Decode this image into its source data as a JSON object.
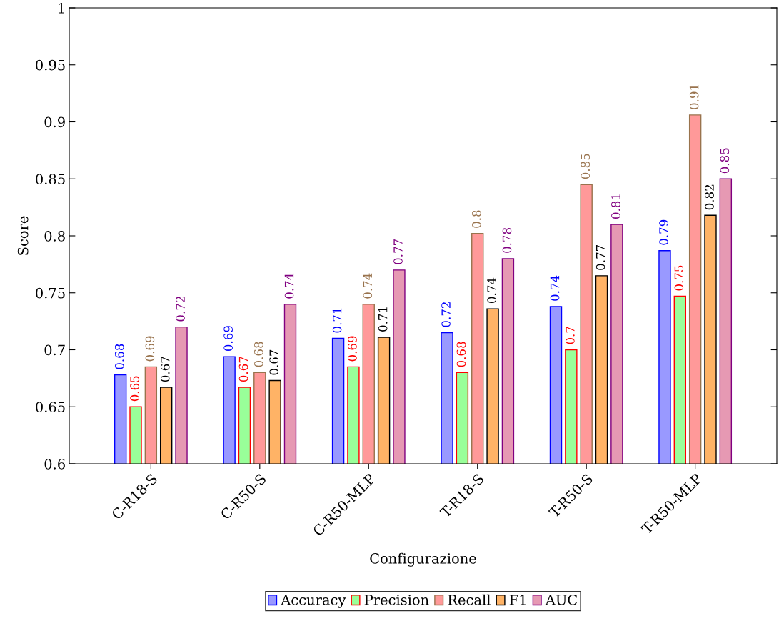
{
  "chart_data": {
    "type": "bar",
    "xlabel": "Configurazione",
    "ylabel": "Score",
    "categories": [
      "C-R18-S",
      "C-R50-S",
      "C-R50-MLP",
      "T-R18-S",
      "T-R50-S",
      "T-R50-MLP"
    ],
    "series": [
      {
        "name": "Accuracy",
        "color": "#9999ff",
        "values": [
          0.678,
          0.694,
          0.71,
          0.715,
          0.738,
          0.787
        ],
        "value_labels": [
          "0.68",
          "0.69",
          "0.71",
          "0.72",
          "0.74",
          "0.79"
        ]
      },
      {
        "name": "Precision",
        "color": "#99ff99",
        "values": [
          0.65,
          0.667,
          0.685,
          0.68,
          0.7,
          0.747
        ],
        "value_labels": [
          "0.65",
          "0.67",
          "0.69",
          "0.68",
          "0.7",
          "0.75"
        ]
      },
      {
        "name": "Recall",
        "color": "#ff9999",
        "values": [
          0.685,
          0.68,
          0.74,
          0.802,
          0.845,
          0.906
        ],
        "value_labels": [
          "0.69",
          "0.68",
          "0.74",
          "0.8",
          "0.85",
          "0.91"
        ]
      },
      {
        "name": "F1",
        "color": "#ffb366",
        "values": [
          0.667,
          0.673,
          0.711,
          0.736,
          0.765,
          0.818
        ],
        "value_labels": [
          "0.67",
          "0.67",
          "0.71",
          "0.74",
          "0.77",
          "0.82"
        ]
      },
      {
        "name": "AUC",
        "color": "#e699b3",
        "values": [
          0.72,
          0.74,
          0.77,
          0.78,
          0.81,
          0.85
        ],
        "value_labels": [
          "0.72",
          "0.74",
          "0.77",
          "0.78",
          "0.81",
          "0.85"
        ]
      }
    ],
    "ylim": [
      0.6,
      1
    ],
    "yticks": [
      0.6,
      0.65,
      0.7,
      0.75,
      0.8,
      0.85,
      0.9,
      0.95,
      1
    ],
    "legend": "bottom",
    "grid": false
  }
}
